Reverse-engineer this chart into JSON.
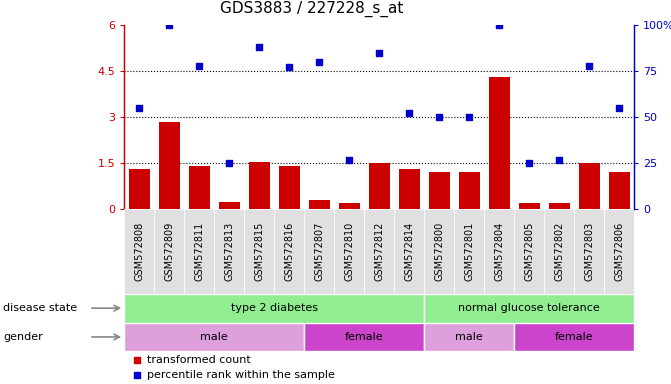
{
  "title": "GDS3883 / 227228_s_at",
  "samples": [
    "GSM572808",
    "GSM572809",
    "GSM572811",
    "GSM572813",
    "GSM572815",
    "GSM572816",
    "GSM572807",
    "GSM572810",
    "GSM572812",
    "GSM572814",
    "GSM572800",
    "GSM572801",
    "GSM572804",
    "GSM572805",
    "GSM572802",
    "GSM572803",
    "GSM572806"
  ],
  "bar_values": [
    1.3,
    2.85,
    1.4,
    0.25,
    1.55,
    1.4,
    0.3,
    0.2,
    1.5,
    1.3,
    1.2,
    1.2,
    4.3,
    0.2,
    0.2,
    1.5,
    1.2
  ],
  "scatter_values": [
    55,
    100,
    78,
    25,
    88,
    77,
    80,
    27,
    85,
    52,
    50,
    50,
    100,
    25,
    27,
    78,
    55
  ],
  "bar_color": "#cc0000",
  "scatter_color": "#0000cc",
  "ylim_left": [
    0,
    6
  ],
  "ylim_right": [
    0,
    100
  ],
  "yticks_left": [
    0,
    1.5,
    3.0,
    4.5,
    6.0
  ],
  "ytick_labels_left": [
    "0",
    "1.5",
    "3",
    "4.5",
    "6"
  ],
  "yticks_right": [
    0,
    25,
    50,
    75,
    100
  ],
  "ytick_labels_right": [
    "0",
    "25",
    "50",
    "75",
    "100%"
  ],
  "hlines": [
    1.5,
    3.0,
    4.5
  ],
  "disease_state_groups": [
    {
      "label": "type 2 diabetes",
      "start": 0,
      "end": 10,
      "color": "#90ee90"
    },
    {
      "label": "normal glucose tolerance",
      "start": 10,
      "end": 17,
      "color": "#90ee90"
    }
  ],
  "gender_groups": [
    {
      "label": "male",
      "start": 0,
      "end": 6,
      "color": "#dda0dd"
    },
    {
      "label": "female",
      "start": 6,
      "end": 10,
      "color": "#cc44cc"
    },
    {
      "label": "male",
      "start": 10,
      "end": 13,
      "color": "#dda0dd"
    },
    {
      "label": "female",
      "start": 13,
      "end": 17,
      "color": "#cc44cc"
    }
  ],
  "legend_items": [
    {
      "label": "transformed count",
      "color": "#cc0000"
    },
    {
      "label": "percentile rank within the sample",
      "color": "#0000cc"
    }
  ],
  "title_fontsize": 11,
  "tick_fontsize": 8,
  "band_fontsize": 8,
  "xtick_fontsize": 7
}
